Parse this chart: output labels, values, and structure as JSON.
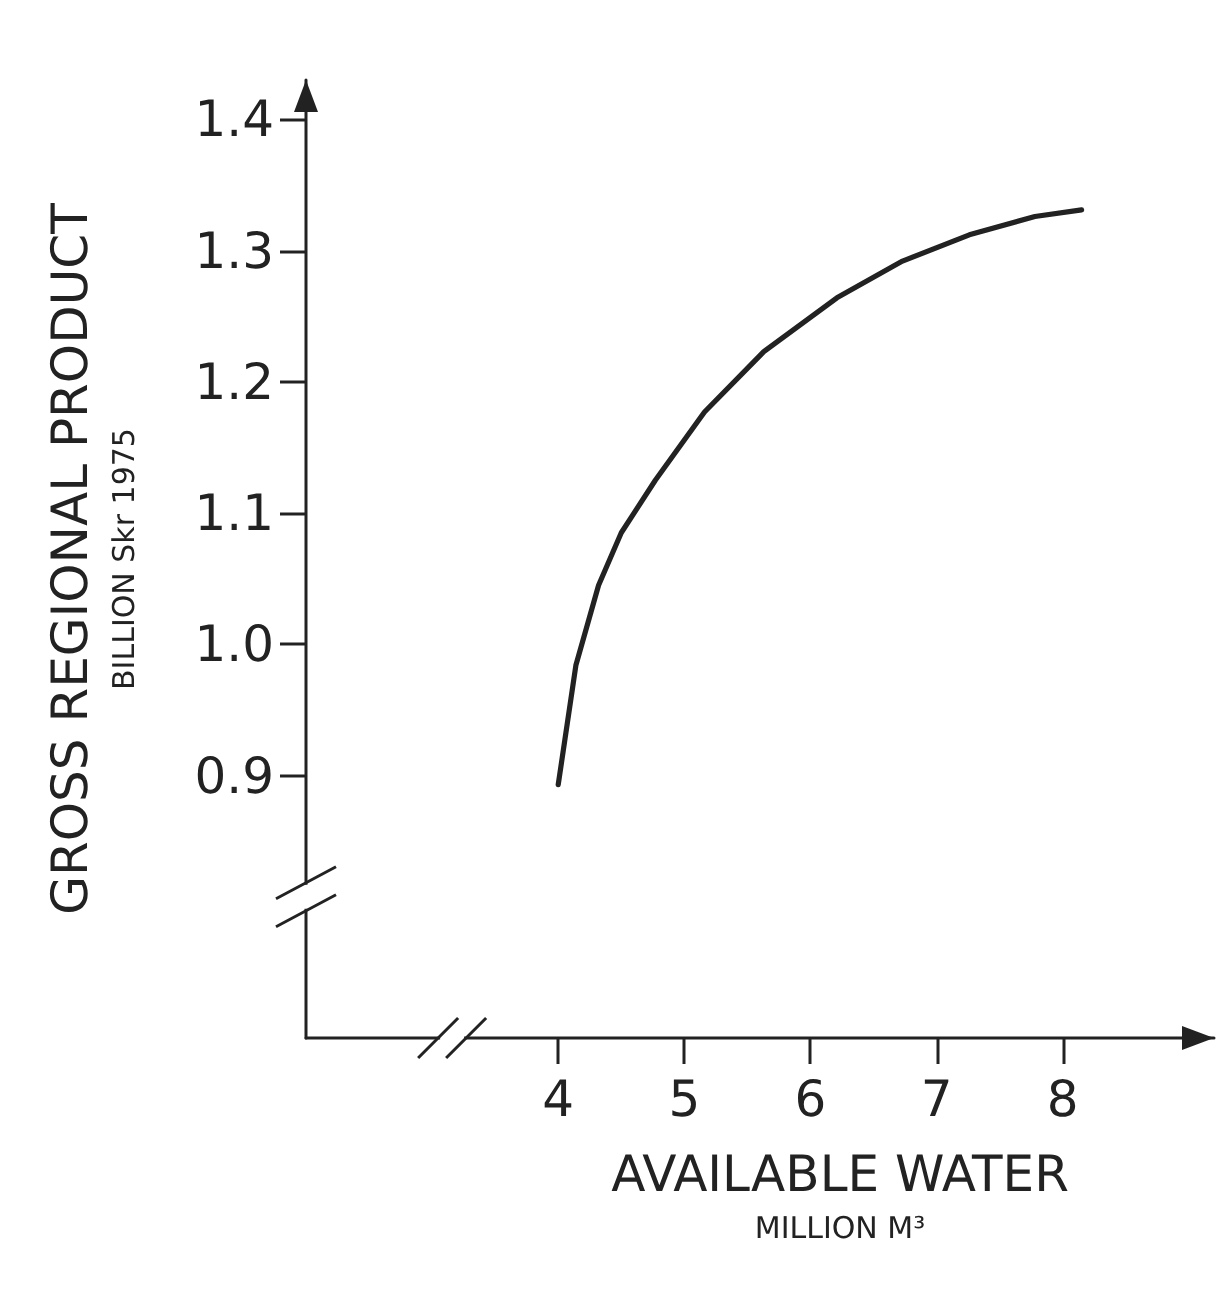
{
  "chart_data": {
    "type": "line",
    "ylabel": "GROSS REGIONAL PRODUCT\nBILLION Skr 1975",
    "xlabel": "AVAILABLE WATER\nMILLION M³",
    "x": [
      4.0,
      4.14,
      4.32,
      4.5,
      4.77,
      5.16,
      5.63,
      6.21,
      6.73,
      7.26,
      7.78,
      8.15
    ],
    "series": [
      {
        "color": "#222222",
        "values": [
          0.893,
          0.984,
          1.045,
          1.085,
          1.125,
          1.177,
          1.223,
          1.264,
          1.292,
          1.312,
          1.326,
          1.331
        ]
      }
    ],
    "xlim": [
      2,
      9.2
    ],
    "xticks": [
      4,
      5,
      6,
      7,
      8
    ],
    "ylim": [
      0.7,
      1.43
    ],
    "yticks": [
      {
        "value": 0.9,
        "label": "0.9"
      },
      {
        "value": 1,
        "label": "1.0"
      },
      {
        "value": 1.1,
        "label": "1.1"
      },
      {
        "value": 1.2,
        "label": "1.2"
      },
      {
        "value": 1.3,
        "label": "1.3"
      },
      {
        "value": 1.4,
        "label": "1.4"
      }
    ],
    "grid": false,
    "marker": "none",
    "line_style": "solid"
  }
}
